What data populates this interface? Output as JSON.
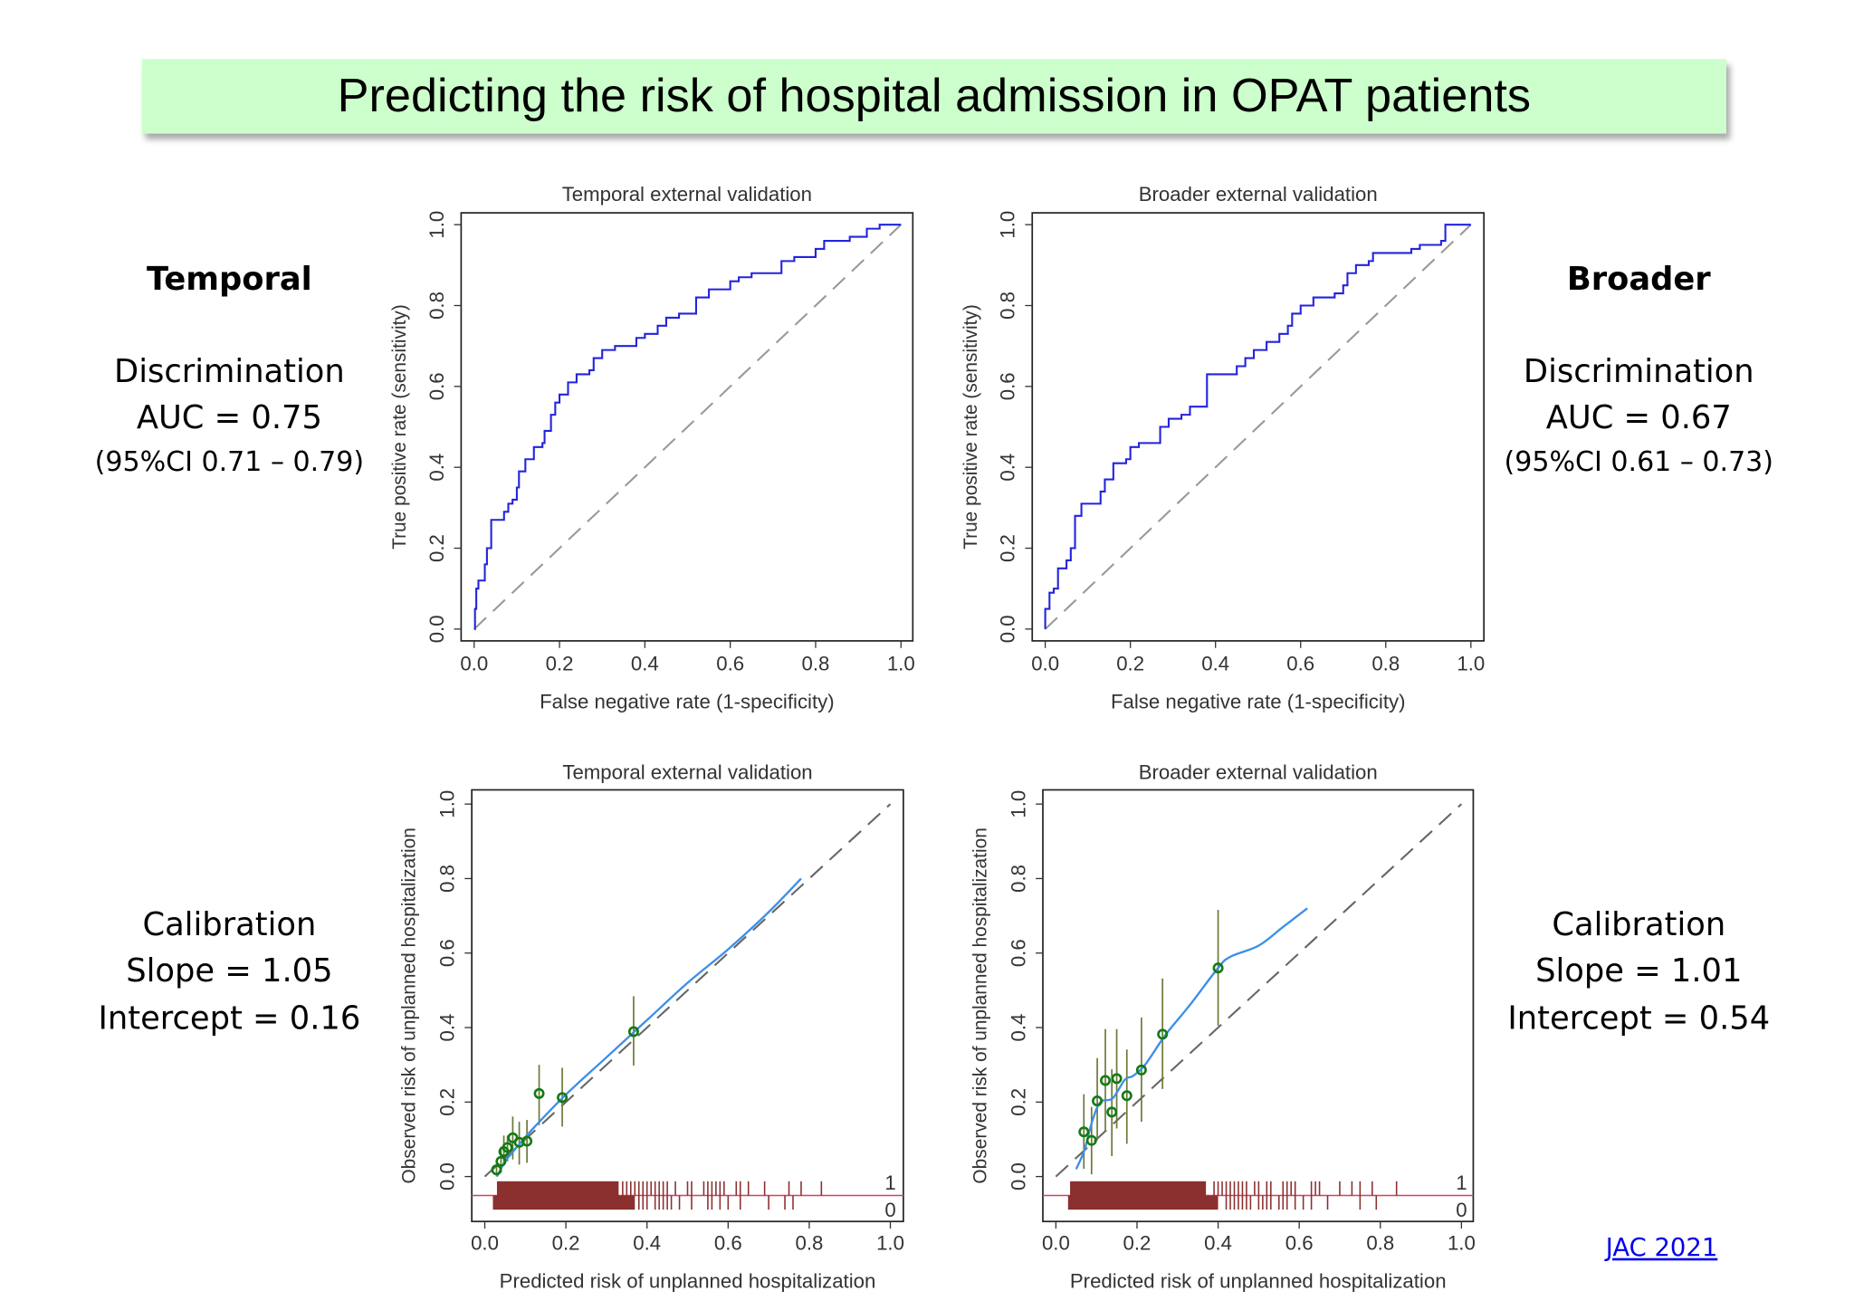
{
  "slide": {
    "title": "Predicting the risk of hospital admission in OPAT patients"
  },
  "left_panel": {
    "heading": "Temporal",
    "discrimination_label": "Discrimination",
    "auc": "AUC = 0.75",
    "ci": "(95%CI 0.71 – 0.79)",
    "calibration_label": "Calibration",
    "slope": "Slope = 1.05",
    "intercept": "Intercept = 0.16"
  },
  "right_panel": {
    "heading": "Broader",
    "discrimination_label": "Discrimination",
    "auc": "AUC = 0.67",
    "ci": "(95%CI 0.61 – 0.73)",
    "calibration_label": "Calibration",
    "slope": "Slope = 1.01",
    "intercept": "Intercept = 0.54"
  },
  "citation_link": "JAC 2021",
  "colors": {
    "title_bg": "#ccffcc",
    "roc_line": "#2323dd",
    "reference_line": "#999999",
    "smooth_line": "#3d8fe8",
    "points": "#137a13",
    "ci_bars": "#6b7a3a",
    "rug": "#8b2f2f",
    "rug_baseline": "#d0406a",
    "link": "#0000ee"
  },
  "chart_data": [
    {
      "type": "line",
      "title": "Temporal external validation",
      "xlabel": "False negative rate (1-specificity)",
      "ylabel": "True positive rate (sensitivity)",
      "xlim": [
        0,
        1
      ],
      "ylim": [
        0,
        1
      ],
      "xticks": [
        "0.0",
        "0.2",
        "0.4",
        "0.6",
        "0.8",
        "1.0"
      ],
      "yticks": [
        "0.0",
        "0.2",
        "0.4",
        "0.6",
        "0.8",
        "1.0"
      ],
      "grid": false,
      "reference_line": [
        [
          0,
          0
        ],
        [
          1,
          1
        ]
      ],
      "series": [
        {
          "style": "step",
          "points": [
            [
              0,
              0
            ],
            [
              0.002,
              0.05
            ],
            [
              0.005,
              0.1
            ],
            [
              0.01,
              0.12
            ],
            [
              0.02,
              0.12
            ],
            [
              0.025,
              0.16
            ],
            [
              0.03,
              0.2
            ],
            [
              0.04,
              0.27
            ],
            [
              0.06,
              0.27
            ],
            [
              0.07,
              0.29
            ],
            [
              0.08,
              0.31
            ],
            [
              0.09,
              0.32
            ],
            [
              0.1,
              0.35
            ],
            [
              0.105,
              0.39
            ],
            [
              0.12,
              0.42
            ],
            [
              0.14,
              0.45
            ],
            [
              0.16,
              0.46
            ],
            [
              0.165,
              0.49
            ],
            [
              0.18,
              0.53
            ],
            [
              0.19,
              0.56
            ],
            [
              0.2,
              0.58
            ],
            [
              0.22,
              0.61
            ],
            [
              0.24,
              0.63
            ],
            [
              0.27,
              0.64
            ],
            [
              0.28,
              0.67
            ],
            [
              0.3,
              0.69
            ],
            [
              0.33,
              0.7
            ],
            [
              0.36,
              0.7
            ],
            [
              0.38,
              0.72
            ],
            [
              0.4,
              0.73
            ],
            [
              0.43,
              0.75
            ],
            [
              0.45,
              0.77
            ],
            [
              0.48,
              0.78
            ],
            [
              0.5,
              0.78
            ],
            [
              0.52,
              0.82
            ],
            [
              0.55,
              0.84
            ],
            [
              0.6,
              0.86
            ],
            [
              0.62,
              0.87
            ],
            [
              0.65,
              0.88
            ],
            [
              0.7,
              0.88
            ],
            [
              0.72,
              0.91
            ],
            [
              0.75,
              0.92
            ],
            [
              0.8,
              0.94
            ],
            [
              0.82,
              0.96
            ],
            [
              0.88,
              0.97
            ],
            [
              0.92,
              0.99
            ],
            [
              0.95,
              1.0
            ],
            [
              1,
              1
            ]
          ]
        }
      ]
    },
    {
      "type": "line",
      "title": "Broader external validation",
      "xlabel": "False negative rate (1-specificity)",
      "ylabel": "True positive rate (sensitivity)",
      "xlim": [
        0,
        1
      ],
      "ylim": [
        0,
        1
      ],
      "xticks": [
        "0.0",
        "0.2",
        "0.4",
        "0.6",
        "0.8",
        "1.0"
      ],
      "yticks": [
        "0.0",
        "0.2",
        "0.4",
        "0.6",
        "0.8",
        "1.0"
      ],
      "grid": false,
      "reference_line": [
        [
          0,
          0
        ],
        [
          1,
          1
        ]
      ],
      "series": [
        {
          "style": "step",
          "points": [
            [
              0,
              0
            ],
            [
              0,
              0.05
            ],
            [
              0.01,
              0.05
            ],
            [
              0.01,
              0.09
            ],
            [
              0.02,
              0.1
            ],
            [
              0.03,
              0.12
            ],
            [
              0.03,
              0.15
            ],
            [
              0.05,
              0.17
            ],
            [
              0.06,
              0.2
            ],
            [
              0.07,
              0.23
            ],
            [
              0.07,
              0.28
            ],
            [
              0.085,
              0.31
            ],
            [
              0.12,
              0.31
            ],
            [
              0.13,
              0.34
            ],
            [
              0.14,
              0.37
            ],
            [
              0.16,
              0.38
            ],
            [
              0.16,
              0.41
            ],
            [
              0.19,
              0.42
            ],
            [
              0.2,
              0.45
            ],
            [
              0.22,
              0.46
            ],
            [
              0.27,
              0.47
            ],
            [
              0.27,
              0.5
            ],
            [
              0.29,
              0.52
            ],
            [
              0.32,
              0.53
            ],
            [
              0.34,
              0.55
            ],
            [
              0.37,
              0.55
            ],
            [
              0.38,
              0.6
            ],
            [
              0.38,
              0.63
            ],
            [
              0.42,
              0.63
            ],
            [
              0.45,
              0.65
            ],
            [
              0.47,
              0.67
            ],
            [
              0.49,
              0.69
            ],
            [
              0.52,
              0.71
            ],
            [
              0.55,
              0.73
            ],
            [
              0.57,
              0.75
            ],
            [
              0.58,
              0.78
            ],
            [
              0.6,
              0.8
            ],
            [
              0.63,
              0.82
            ],
            [
              0.68,
              0.83
            ],
            [
              0.7,
              0.85
            ],
            [
              0.71,
              0.88
            ],
            [
              0.73,
              0.9
            ],
            [
              0.76,
              0.91
            ],
            [
              0.77,
              0.93
            ],
            [
              0.83,
              0.93
            ],
            [
              0.86,
              0.94
            ],
            [
              0.88,
              0.95
            ],
            [
              0.93,
              0.96
            ],
            [
              0.94,
              1.0
            ],
            [
              1,
              1
            ]
          ]
        }
      ]
    },
    {
      "type": "scatter",
      "title": "Temporal external validation",
      "xlabel": "Predicted risk of unplanned hospitalization",
      "ylabel": "Observed risk of unplanned hospitalization",
      "xlim": [
        0,
        1
      ],
      "ylim": [
        0,
        1
      ],
      "xticks": [
        "0.0",
        "0.2",
        "0.4",
        "0.6",
        "0.8",
        "1.0"
      ],
      "yticks": [
        "0.0",
        "0.2",
        "0.4",
        "0.6",
        "0.8",
        "1.0"
      ],
      "grid": false,
      "reference_line": [
        [
          0,
          0
        ],
        [
          1,
          1
        ]
      ],
      "groups": [
        {
          "x": 0.029,
          "y": 0.018,
          "ci": [
            0.0,
            0.04
          ]
        },
        {
          "x": 0.04,
          "y": 0.041,
          "ci": [
            0.01,
            0.08
          ]
        },
        {
          "x": 0.047,
          "y": 0.067,
          "ci": [
            0.03,
            0.11
          ]
        },
        {
          "x": 0.056,
          "y": 0.078,
          "ci": [
            0.041,
            0.11
          ]
        },
        {
          "x": 0.069,
          "y": 0.104,
          "ci": [
            0.046,
            0.161
          ]
        },
        {
          "x": 0.085,
          "y": 0.092,
          "ci": [
            0.032,
            0.147
          ]
        },
        {
          "x": 0.104,
          "y": 0.095,
          "ci": [
            0.037,
            0.152
          ]
        },
        {
          "x": 0.134,
          "y": 0.223,
          "ci": [
            0.138,
            0.3
          ]
        },
        {
          "x": 0.191,
          "y": 0.212,
          "ci": [
            0.134,
            0.292
          ]
        },
        {
          "x": 0.367,
          "y": 0.389,
          "ci": [
            0.298,
            0.484
          ]
        }
      ],
      "smooth": [
        [
          0.03,
          0.0
        ],
        [
          0.05,
          0.04
        ],
        [
          0.08,
          0.08
        ],
        [
          0.12,
          0.13
        ],
        [
          0.2,
          0.22
        ],
        [
          0.3,
          0.32
        ],
        [
          0.4,
          0.42
        ],
        [
          0.5,
          0.52
        ],
        [
          0.6,
          0.61
        ],
        [
          0.7,
          0.71
        ],
        [
          0.78,
          0.8
        ]
      ],
      "rug": {
        "labels": [
          "1",
          "0"
        ],
        "events": {
          "dense_range": [
            0.03,
            0.33
          ],
          "ticks": [
            0.34,
            0.35,
            0.36,
            0.37,
            0.38,
            0.39,
            0.4,
            0.41,
            0.42,
            0.43,
            0.44,
            0.45,
            0.47,
            0.5,
            0.51,
            0.54,
            0.55,
            0.56,
            0.57,
            0.58,
            0.59,
            0.62,
            0.63,
            0.65,
            0.69,
            0.75,
            0.78,
            0.83
          ]
        },
        "non_events": {
          "dense_range": [
            0.02,
            0.37
          ],
          "ticks": [
            0.38,
            0.39,
            0.4,
            0.42,
            0.43,
            0.44,
            0.45,
            0.46,
            0.48,
            0.51,
            0.55,
            0.56,
            0.58,
            0.6,
            0.63,
            0.7,
            0.74,
            0.76
          ]
        }
      }
    },
    {
      "type": "scatter",
      "title": "Broader external validation",
      "xlabel": "Predicted risk of unplanned hospitalization",
      "ylabel": "Observed risk of unplanned hospitalization",
      "xlim": [
        0,
        1
      ],
      "ylim": [
        0,
        1
      ],
      "xticks": [
        "0.0",
        "0.2",
        "0.4",
        "0.6",
        "0.8",
        "1.0"
      ],
      "yticks": [
        "0.0",
        "0.2",
        "0.4",
        "0.6",
        "0.8",
        "1.0"
      ],
      "grid": false,
      "reference_line": [
        [
          0,
          0
        ],
        [
          1,
          1
        ]
      ],
      "groups": [
        {
          "x": 0.069,
          "y": 0.12,
          "ci": [
            0.021,
            0.221
          ]
        },
        {
          "x": 0.088,
          "y": 0.097,
          "ci": [
            0.006,
            0.187
          ]
        },
        {
          "x": 0.102,
          "y": 0.203,
          "ci": [
            0.097,
            0.318
          ]
        },
        {
          "x": 0.122,
          "y": 0.258,
          "ci": [
            0.12,
            0.396
          ]
        },
        {
          "x": 0.138,
          "y": 0.173,
          "ci": [
            0.055,
            0.288
          ]
        },
        {
          "x": 0.15,
          "y": 0.263,
          "ci": [
            0.129,
            0.396
          ]
        },
        {
          "x": 0.175,
          "y": 0.217,
          "ci": [
            0.088,
            0.341
          ]
        },
        {
          "x": 0.211,
          "y": 0.286,
          "ci": [
            0.147,
            0.427
          ]
        },
        {
          "x": 0.263,
          "y": 0.382,
          "ci": [
            0.235,
            0.532
          ]
        },
        {
          "x": 0.4,
          "y": 0.56,
          "ci": [
            0.405,
            0.716
          ]
        }
      ],
      "smooth": [
        [
          0.05,
          0.02
        ],
        [
          0.07,
          0.07
        ],
        [
          0.09,
          0.15
        ],
        [
          0.11,
          0.2
        ],
        [
          0.14,
          0.21
        ],
        [
          0.17,
          0.26
        ],
        [
          0.19,
          0.27
        ],
        [
          0.22,
          0.3
        ],
        [
          0.27,
          0.38
        ],
        [
          0.33,
          0.46
        ],
        [
          0.4,
          0.56
        ],
        [
          0.43,
          0.59
        ],
        [
          0.5,
          0.62
        ],
        [
          0.56,
          0.67
        ],
        [
          0.62,
          0.72
        ]
      ],
      "rug": {
        "labels": [
          "1",
          "0"
        ],
        "events": {
          "dense_range": [
            0.035,
            0.37
          ],
          "ticks": [
            0.39,
            0.4,
            0.41,
            0.42,
            0.43,
            0.44,
            0.45,
            0.46,
            0.47,
            0.49,
            0.5,
            0.52,
            0.53,
            0.56,
            0.57,
            0.58,
            0.59,
            0.63,
            0.64,
            0.65,
            0.7,
            0.73,
            0.75,
            0.78,
            0.84
          ]
        },
        "non_events": {
          "dense_range": [
            0.03,
            0.4
          ],
          "ticks": [
            0.42,
            0.43,
            0.44,
            0.45,
            0.46,
            0.47,
            0.48,
            0.5,
            0.51,
            0.52,
            0.53,
            0.55,
            0.56,
            0.57,
            0.59,
            0.61,
            0.63,
            0.67,
            0.75,
            0.79
          ]
        }
      }
    }
  ]
}
